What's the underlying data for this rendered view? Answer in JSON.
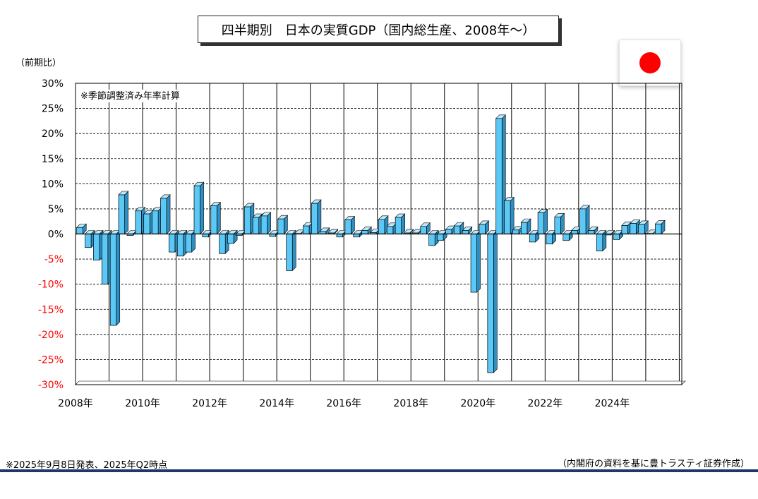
{
  "title": "四半期別　日本の実質GDP（国内総生産、2008年～）",
  "unit_label": "（前期比）",
  "annotation": "※季節調整済み年率計算",
  "footnote": "※2025年9月8日発表、2025年Q2時点",
  "source": "（内閣府の資料を基に豊トラスティ証券作成）",
  "flag_icon": "japan-flag",
  "colors": {
    "bar_front": "#5bc8f5",
    "bar_side": "#2f8fc2",
    "bar_top": "#bfe9fb",
    "negative_tick": "#ff0000",
    "footer_rule": "#1f3864"
  },
  "chart_data": {
    "type": "bar",
    "ylim": [
      -30,
      30
    ],
    "y_ticks": [
      30,
      25,
      20,
      15,
      10,
      5,
      0,
      -5,
      -10,
      -15,
      -20,
      -25,
      -30
    ],
    "y_tick_labels": [
      "30%",
      "25%",
      "20%",
      "15%",
      "10%",
      "5%",
      "0%",
      "-5%",
      "-10%",
      "-15%",
      "-20%",
      "-25%",
      "-30%"
    ],
    "x_tick_labels": [
      "2008年",
      "2010年",
      "2012年",
      "2014年",
      "2016年",
      "2018年",
      "2020年",
      "2022年",
      "2024年"
    ],
    "grid": true,
    "series": [
      {
        "values": [
          1.3,
          -2.7,
          -5.2,
          -10.0,
          -18.2,
          7.8,
          -0.3,
          4.6,
          4.0,
          4.6,
          7.1,
          -3.6,
          -4.4,
          -3.6,
          9.6,
          -0.6,
          5.6,
          -3.9,
          -1.9,
          -0.3,
          5.4,
          3.3,
          3.6,
          -0.5,
          3.0,
          -7.3,
          0.1,
          1.6,
          6.1,
          0.5,
          0.2,
          -0.6,
          2.8,
          -0.6,
          0.7,
          0.3,
          2.9,
          1.5,
          3.3,
          0.2,
          0.2,
          1.5,
          -2.3,
          -1.3,
          0.9,
          1.6,
          0.7,
          -11.6,
          1.9,
          -27.6,
          23.0,
          6.6,
          0.8,
          2.3,
          -1.6,
          4.2,
          -2.0,
          3.4,
          -1.3,
          0.7,
          5.0,
          0.7,
          -3.4,
          -0.2,
          -1.1,
          1.7,
          2.1,
          1.9,
          0.1,
          2.0
        ]
      }
    ]
  }
}
